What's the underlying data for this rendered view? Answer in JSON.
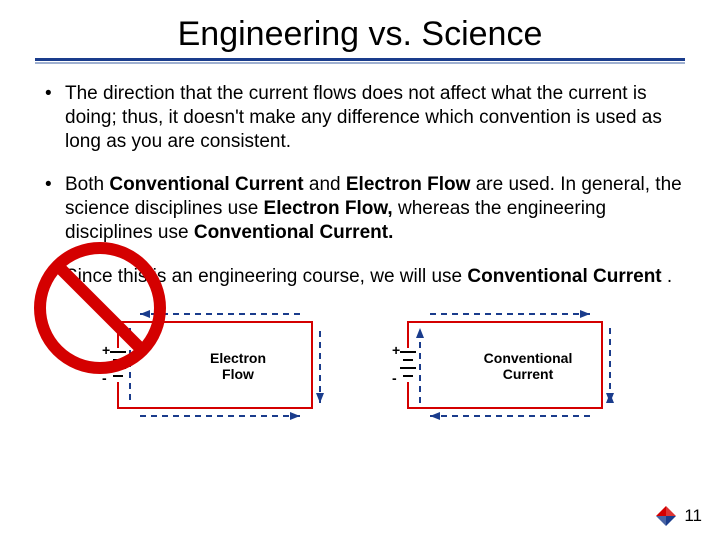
{
  "title": "Engineering vs. Science",
  "bullets": [
    {
      "segments": [
        {
          "text": "The direction that the current flows does not affect what the current is doing; thus, it doesn't make any difference which convention is used as long as you are consistent.",
          "bold": false
        }
      ]
    },
    {
      "segments": [
        {
          "text": "Both ",
          "bold": false
        },
        {
          "text": "Conventional Current",
          "bold": true
        },
        {
          "text": " and ",
          "bold": false
        },
        {
          "text": "Electron Flow",
          "bold": true
        },
        {
          "text": " are used. In general, the science disciplines use ",
          "bold": false
        },
        {
          "text": "Electron Flow,",
          "bold": true
        },
        {
          "text": " whereas the engineering disciplines use ",
          "bold": false
        },
        {
          "text": "Conventional Current.",
          "bold": true
        }
      ]
    },
    {
      "segments": [
        {
          "text": "Since this is an engineering course, we will use ",
          "bold": false
        },
        {
          "text": "Conventional Current",
          "bold": true
        },
        {
          "text": " .",
          "bold": false
        }
      ]
    }
  ],
  "circuits": {
    "left": {
      "label": "Electron\nFlow",
      "crossed": true,
      "flow_direction": "ccw",
      "rect_color": "#d40000",
      "arrow_color": "#1a3c8c",
      "plus": "+",
      "minus": "-"
    },
    "right": {
      "label": "Conventional\nCurrent",
      "crossed": false,
      "flow_direction": "cw",
      "rect_color": "#d40000",
      "arrow_color": "#1a3c8c",
      "plus": "+",
      "minus": "-"
    }
  },
  "no_symbol": {
    "stroke_color": "#d40000",
    "stroke_width": 10,
    "diameter": 130
  },
  "title_underline_color": "#1a3c8c",
  "title_underline_shadow_color": "#9fb0d0",
  "page_number": "11",
  "logo_colors": {
    "a": "#d40000",
    "b": "#1a3c8c"
  }
}
